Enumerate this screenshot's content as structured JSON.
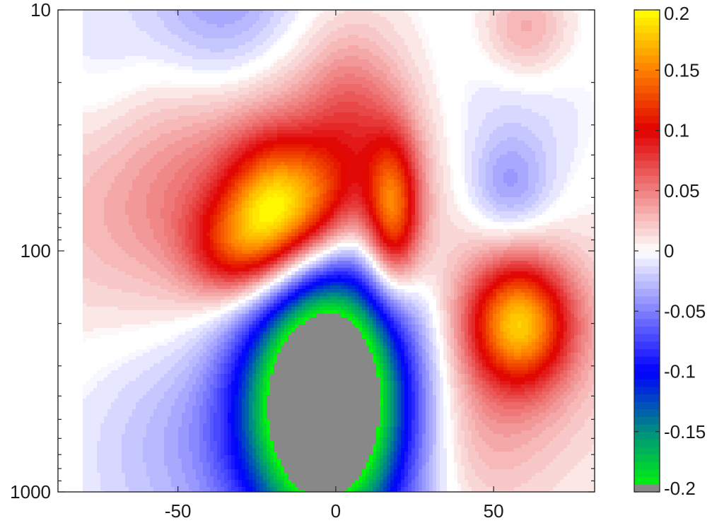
{
  "chart_data": {
    "type": "heatmap",
    "title": "",
    "xlabel": "",
    "ylabel": "",
    "x_range": [
      -88,
      82
    ],
    "y_range": [
      10,
      1000
    ],
    "y_scale": "log",
    "y_direction": "reversed",
    "x_ticks": [
      {
        "value": -50,
        "label": "-50"
      },
      {
        "value": 0,
        "label": "0"
      },
      {
        "value": 50,
        "label": "50"
      }
    ],
    "y_ticks": [
      {
        "value": 10,
        "label": "10"
      },
      {
        "value": 100,
        "label": "100"
      },
      {
        "value": 1000,
        "label": "1000"
      }
    ],
    "data_extent_x": [
      -80,
      82
    ],
    "colorbar": {
      "range": [
        -0.2,
        0.2
      ],
      "ticks": [
        {
          "value": 0.2,
          "label": "0.2"
        },
        {
          "value": 0.15,
          "label": "0.15"
        },
        {
          "value": 0.1,
          "label": "0.1"
        },
        {
          "value": 0.05,
          "label": "0.05"
        },
        {
          "value": 0,
          "label": "0"
        },
        {
          "value": -0.05,
          "label": "-0.05"
        },
        {
          "value": -0.1,
          "label": "-0.1"
        },
        {
          "value": -0.15,
          "label": "-0.15"
        },
        {
          "value": -0.2,
          "label": "-0.2"
        }
      ],
      "colormap_stops": [
        {
          "value": -0.2,
          "color": "#00ff00"
        },
        {
          "value": -0.15,
          "color": "#009080"
        },
        {
          "value": -0.1,
          "color": "#0000ff"
        },
        {
          "value": -0.05,
          "color": "#8080ff"
        },
        {
          "value": 0,
          "color": "#ffffff"
        },
        {
          "value": 0.05,
          "color": "#f08080"
        },
        {
          "value": 0.1,
          "color": "#e00000"
        },
        {
          "value": 0.15,
          "color": "#ff8000"
        },
        {
          "value": 0.2,
          "color": "#ffff00"
        }
      ],
      "below_range_color": "#888888"
    },
    "features": [
      {
        "kind": "gaussian",
        "x": -20,
        "y": 70,
        "sx": 10,
        "sy": 0.2,
        "amp": 0.14
      },
      {
        "kind": "gaussian",
        "x": -33,
        "y": 100,
        "sx": 10,
        "sy": 0.15,
        "amp": 0.07
      },
      {
        "kind": "gaussian",
        "x": -5,
        "y": 65,
        "sx": 9,
        "sy": 0.18,
        "amp": 0.07
      },
      {
        "kind": "gaussian",
        "x": 18,
        "y": 70,
        "sx": 6,
        "sy": 0.22,
        "amp": 0.13
      },
      {
        "kind": "gaussian",
        "x": -20,
        "y": 55,
        "sx": 48,
        "sy": 0.42,
        "amp": 0.07
      },
      {
        "kind": "gaussian",
        "x": 5,
        "y": 30,
        "sx": 10,
        "sy": 0.25,
        "amp": 0.035
      },
      {
        "kind": "gaussian",
        "x": 58,
        "y": 200,
        "sx": 11,
        "sy": 0.18,
        "amp": 0.15
      },
      {
        "kind": "gaussian",
        "x": 60,
        "y": 230,
        "sx": 25,
        "sy": 0.4,
        "amp": 0.03
      },
      {
        "kind": "gaussian",
        "x": 45,
        "y": 600,
        "sx": 15,
        "sy": 0.25,
        "amp": 0.02
      },
      {
        "kind": "gaussian",
        "x": -3,
        "y": 400,
        "sx": 18,
        "sy": 0.42,
        "amp": -0.33
      },
      {
        "kind": "gaussian",
        "x": -48,
        "y": 600,
        "sx": 22,
        "sy": 0.4,
        "amp": -0.03
      },
      {
        "kind": "gaussian",
        "x": -35,
        "y": 10,
        "sx": 18,
        "sy": 0.35,
        "amp": -0.05
      },
      {
        "kind": "gaussian",
        "x": 50,
        "y": 40,
        "sx": 22,
        "sy": 0.4,
        "amp": -0.035
      },
      {
        "kind": "gaussian",
        "x": 55,
        "y": 55,
        "sx": 9,
        "sy": 0.15,
        "amp": -0.035
      },
      {
        "kind": "gaussian",
        "x": 60,
        "y": 12,
        "sx": 10,
        "sy": 0.15,
        "amp": 0.04
      },
      {
        "kind": "gaussian",
        "x": -75,
        "y": 20,
        "sx": 15,
        "sy": 0.3,
        "amp": -0.02
      }
    ]
  }
}
